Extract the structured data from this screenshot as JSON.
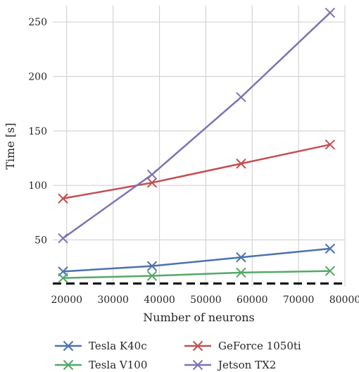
{
  "chart_data": {
    "type": "line",
    "xlabel": "Number of neurons",
    "ylabel": "Time [s]",
    "xlim": [
      17000,
      80000
    ],
    "ylim": [
      7,
      265
    ],
    "xticks": [
      20000,
      30000,
      40000,
      50000,
      60000,
      70000,
      80000
    ],
    "yticks": [
      50,
      100,
      150,
      200,
      250
    ],
    "grid": true,
    "legend_position": "bottom",
    "x": [
      19200,
      38400,
      57600,
      76800
    ],
    "series": [
      {
        "name": "Tesla K40c",
        "color": "#4c72b0",
        "marker": "x",
        "values": [
          21,
          26,
          34,
          42
        ]
      },
      {
        "name": "Tesla V100",
        "color": "#55a868",
        "marker": "x",
        "values": [
          15,
          17,
          20,
          21.5
        ]
      },
      {
        "name": "GeForce 1050ti",
        "color": "#c44e52",
        "marker": "x",
        "values": [
          88,
          102.5,
          120,
          137.5
        ]
      },
      {
        "name": "Jetson TX2",
        "color": "#8172b2",
        "marker": "x",
        "values": [
          51.5,
          110,
          181,
          258.5
        ]
      }
    ],
    "reference_line": {
      "y": 10,
      "style": "dashed",
      "color": "#000000"
    }
  }
}
